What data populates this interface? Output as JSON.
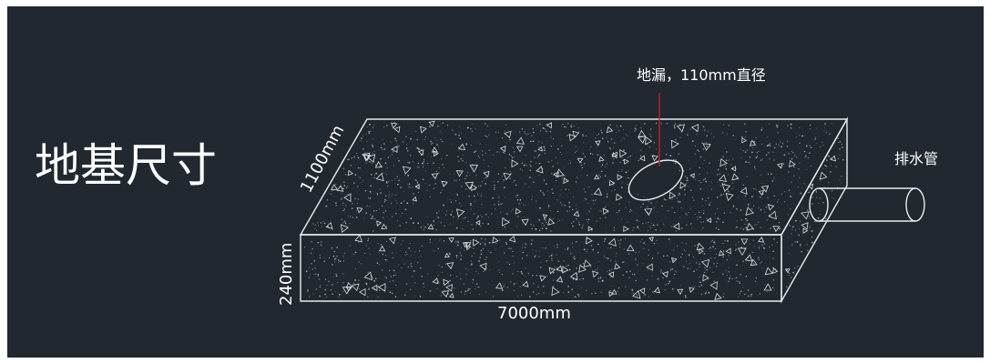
{
  "title": "地基尺寸",
  "dimensions": {
    "depth": "1100mm",
    "height": "240mm",
    "length": "7000mm"
  },
  "labels": {
    "drain": "地漏，110mm直径",
    "pipe": "排水管"
  },
  "colors": {
    "background": "#212830",
    "line": "#e9ecee",
    "leader": "#c0202a",
    "text": "#ffffff"
  }
}
